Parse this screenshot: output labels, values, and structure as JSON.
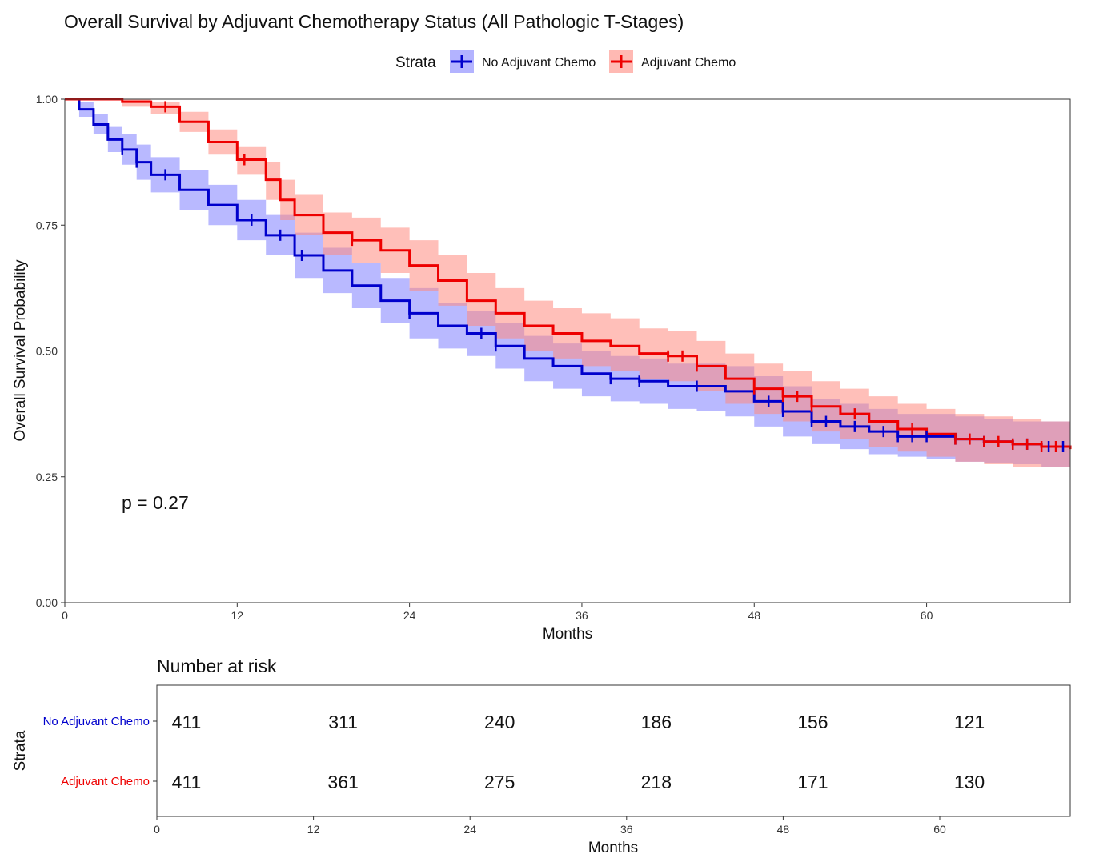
{
  "chart_data": [
    {
      "type": "line",
      "subtype": "kaplan-meier",
      "title": "Overall Survival by Adjuvant Chemotherapy Status (All Pathologic T-Stages)",
      "xlabel": "Months",
      "ylabel": "Overall Survival Probability",
      "xlim": [
        0,
        70
      ],
      "ylim": [
        0,
        1
      ],
      "xticks": [
        0,
        12,
        24,
        36,
        48,
        60
      ],
      "xtick_labels": [
        "0",
        "12",
        "24",
        "36",
        "48",
        "60"
      ],
      "yticks": [
        0,
        0.25,
        0.5,
        0.75,
        1.0
      ],
      "ytick_labels": [
        "0.00",
        "0.25",
        "0.50",
        "0.75",
        "1.00"
      ],
      "legend": {
        "title": "Strata",
        "position": "top"
      },
      "annotation": "p = 0.27",
      "series": [
        {
          "name": "No Adjuvant Chemo",
          "color": "#0000CC",
          "band_color": "#8080FF",
          "x": [
            0,
            1,
            2,
            3,
            4,
            5,
            6,
            8,
            10,
            12,
            14,
            16,
            18,
            20,
            22,
            24,
            26,
            28,
            30,
            32,
            34,
            36,
            38,
            40,
            42,
            44,
            46,
            48,
            50,
            52,
            54,
            56,
            58,
            60,
            62,
            64,
            66,
            68,
            70
          ],
          "y": [
            1.0,
            0.98,
            0.95,
            0.92,
            0.9,
            0.875,
            0.85,
            0.82,
            0.79,
            0.76,
            0.73,
            0.69,
            0.66,
            0.63,
            0.6,
            0.575,
            0.55,
            0.535,
            0.51,
            0.485,
            0.47,
            0.455,
            0.445,
            0.44,
            0.43,
            0.43,
            0.42,
            0.4,
            0.38,
            0.36,
            0.35,
            0.34,
            0.33,
            0.33,
            0.325,
            0.32,
            0.315,
            0.31,
            0.31
          ],
          "lower": [
            1.0,
            0.965,
            0.93,
            0.895,
            0.87,
            0.84,
            0.815,
            0.78,
            0.75,
            0.72,
            0.69,
            0.645,
            0.615,
            0.585,
            0.555,
            0.525,
            0.505,
            0.49,
            0.465,
            0.44,
            0.425,
            0.41,
            0.4,
            0.395,
            0.385,
            0.38,
            0.37,
            0.35,
            0.33,
            0.315,
            0.305,
            0.295,
            0.29,
            0.285,
            0.28,
            0.278,
            0.275,
            0.27,
            0.27
          ],
          "upper": [
            1.0,
            0.995,
            0.97,
            0.945,
            0.93,
            0.91,
            0.885,
            0.86,
            0.83,
            0.8,
            0.77,
            0.735,
            0.705,
            0.675,
            0.645,
            0.625,
            0.595,
            0.58,
            0.555,
            0.53,
            0.515,
            0.5,
            0.49,
            0.485,
            0.475,
            0.475,
            0.47,
            0.45,
            0.43,
            0.405,
            0.395,
            0.385,
            0.375,
            0.375,
            0.37,
            0.365,
            0.36,
            0.36,
            0.36
          ],
          "censor_x": [
            4,
            5,
            7,
            13,
            15,
            16.5,
            24,
            29,
            30,
            38,
            40,
            44,
            49,
            50,
            52,
            53,
            55,
            57,
            58,
            59,
            60,
            62,
            64,
            66,
            67,
            68.5,
            69.5
          ]
        },
        {
          "name": "Adjuvant Chemo",
          "color": "#EE0000",
          "band_color": "#FF8B80",
          "x": [
            0,
            2,
            4,
            6,
            8,
            10,
            12,
            14,
            15,
            16,
            18,
            20,
            22,
            24,
            26,
            28,
            30,
            32,
            34,
            36,
            38,
            40,
            42,
            44,
            46,
            48,
            50,
            52,
            54,
            56,
            58,
            60,
            62,
            64,
            66,
            68,
            70
          ],
          "y": [
            1.0,
            1.0,
            0.995,
            0.985,
            0.955,
            0.915,
            0.88,
            0.84,
            0.8,
            0.77,
            0.735,
            0.72,
            0.7,
            0.67,
            0.64,
            0.6,
            0.575,
            0.55,
            0.535,
            0.52,
            0.51,
            0.495,
            0.49,
            0.47,
            0.445,
            0.425,
            0.41,
            0.39,
            0.375,
            0.36,
            0.345,
            0.335,
            0.325,
            0.32,
            0.315,
            0.31,
            0.305
          ],
          "lower": [
            1.0,
            1.0,
            0.985,
            0.97,
            0.935,
            0.89,
            0.85,
            0.8,
            0.76,
            0.73,
            0.69,
            0.675,
            0.655,
            0.62,
            0.59,
            0.55,
            0.525,
            0.5,
            0.485,
            0.47,
            0.46,
            0.445,
            0.44,
            0.42,
            0.395,
            0.375,
            0.36,
            0.34,
            0.325,
            0.31,
            0.3,
            0.29,
            0.28,
            0.275,
            0.27,
            0.27,
            0.265
          ],
          "upper": [
            1.0,
            1.0,
            1.0,
            0.995,
            0.975,
            0.94,
            0.905,
            0.875,
            0.84,
            0.81,
            0.775,
            0.765,
            0.745,
            0.72,
            0.69,
            0.655,
            0.625,
            0.6,
            0.585,
            0.575,
            0.565,
            0.545,
            0.54,
            0.52,
            0.495,
            0.475,
            0.46,
            0.44,
            0.425,
            0.41,
            0.395,
            0.385,
            0.375,
            0.37,
            0.365,
            0.36,
            0.355
          ],
          "censor_x": [
            7,
            12.5,
            20,
            42,
            43,
            44,
            48,
            50,
            51,
            52,
            55,
            59,
            62,
            63,
            64,
            65,
            66,
            67,
            68,
            69
          ]
        }
      ]
    },
    {
      "type": "table",
      "title": "Number at risk",
      "xlabel": "Months",
      "ylabel": "Strata",
      "xlim": [
        0,
        70
      ],
      "xticks": [
        0,
        12,
        24,
        36,
        48,
        60
      ],
      "xtick_labels": [
        "0",
        "12",
        "24",
        "36",
        "48",
        "60"
      ],
      "rows": [
        {
          "name": "No Adjuvant Chemo",
          "color": "#0000CC",
          "values": [
            "411",
            "311",
            "240",
            "186",
            "156",
            "121"
          ]
        },
        {
          "name": "Adjuvant Chemo",
          "color": "#EE0000",
          "values": [
            "411",
            "361",
            "275",
            "218",
            "171",
            "130"
          ]
        }
      ]
    }
  ]
}
